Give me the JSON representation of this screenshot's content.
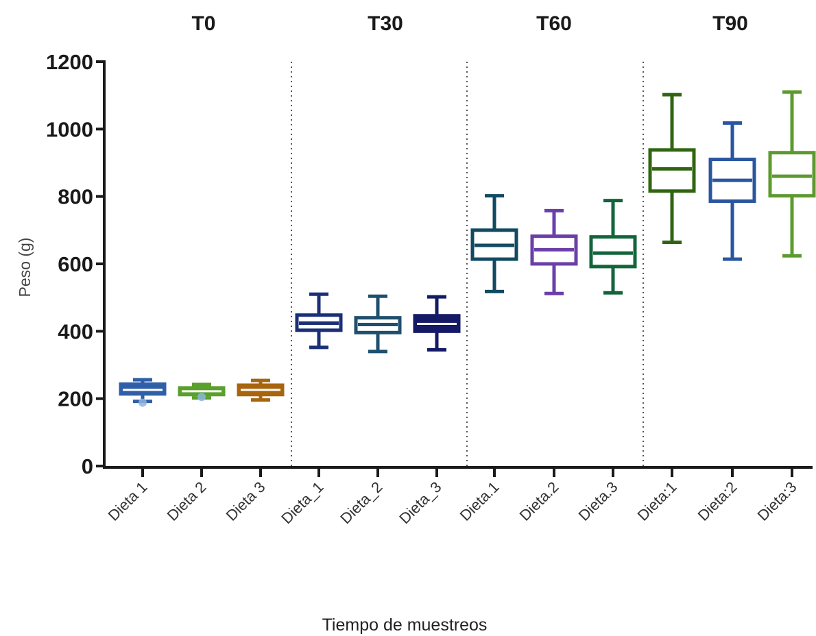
{
  "chart_data": {
    "type": "box",
    "ylabel": "Peso (g)",
    "xlabel": "Tiempo de muestreos",
    "ylim": [
      0,
      1200
    ],
    "yticks": [
      0,
      200,
      400,
      600,
      800,
      1000,
      1200
    ],
    "grid": false,
    "groups": [
      {
        "name": "T0",
        "boxes": [
          {
            "label": "Dieta 1",
            "color": "#2f5fa8",
            "filled": true,
            "min": 192,
            "q1": 214,
            "median": 226,
            "q3": 243,
            "max": 256,
            "outliers": [
              188
            ]
          },
          {
            "label": "Dieta 2",
            "color": "#5aa02c",
            "filled": true,
            "min": 202,
            "q1": 212,
            "median": 222,
            "q3": 232,
            "max": 242,
            "outliers": [
              205
            ]
          },
          {
            "label": "Dieta 3",
            "color": "#a8650e",
            "filled": true,
            "min": 196,
            "q1": 212,
            "median": 226,
            "q3": 240,
            "max": 254,
            "outliers": []
          }
        ]
      },
      {
        "name": "T30",
        "boxes": [
          {
            "label": "Dieta_1",
            "color": "#1a2f78",
            "filled": false,
            "min": 352,
            "q1": 403,
            "median": 424,
            "q3": 448,
            "max": 510,
            "outliers": []
          },
          {
            "label": "Dieta_2",
            "color": "#1f4f6e",
            "filled": false,
            "min": 340,
            "q1": 396,
            "median": 420,
            "q3": 440,
            "max": 504,
            "outliers": []
          },
          {
            "label": "Dieta_3",
            "color": "#141a66",
            "filled": true,
            "min": 345,
            "q1": 400,
            "median": 422,
            "q3": 446,
            "max": 502,
            "outliers": []
          }
        ]
      },
      {
        "name": "T60",
        "boxes": [
          {
            "label": "Dieta.1",
            "color": "#124a62",
            "filled": false,
            "min": 518,
            "q1": 614,
            "median": 655,
            "q3": 700,
            "max": 802,
            "outliers": []
          },
          {
            "label": "Dieta.2",
            "color": "#6a3fa8",
            "filled": false,
            "min": 512,
            "q1": 600,
            "median": 642,
            "q3": 682,
            "max": 758,
            "outliers": []
          },
          {
            "label": "Dieta.3",
            "color": "#12643a",
            "filled": false,
            "min": 514,
            "q1": 592,
            "median": 632,
            "q3": 680,
            "max": 788,
            "outliers": []
          }
        ]
      },
      {
        "name": "T90",
        "boxes": [
          {
            "label": "Dieta:1",
            "color": "#2f6510",
            "filled": false,
            "min": 664,
            "q1": 816,
            "median": 882,
            "q3": 938,
            "max": 1102,
            "outliers": []
          },
          {
            "label": "Dieta:2",
            "color": "#2a56a0",
            "filled": false,
            "min": 614,
            "q1": 786,
            "median": 848,
            "q3": 910,
            "max": 1018,
            "outliers": []
          },
          {
            "label": "Dieta:3",
            "color": "#5c9a2e",
            "filled": false,
            "min": 624,
            "q1": 802,
            "median": 860,
            "q3": 930,
            "max": 1110,
            "outliers": []
          }
        ]
      }
    ]
  }
}
